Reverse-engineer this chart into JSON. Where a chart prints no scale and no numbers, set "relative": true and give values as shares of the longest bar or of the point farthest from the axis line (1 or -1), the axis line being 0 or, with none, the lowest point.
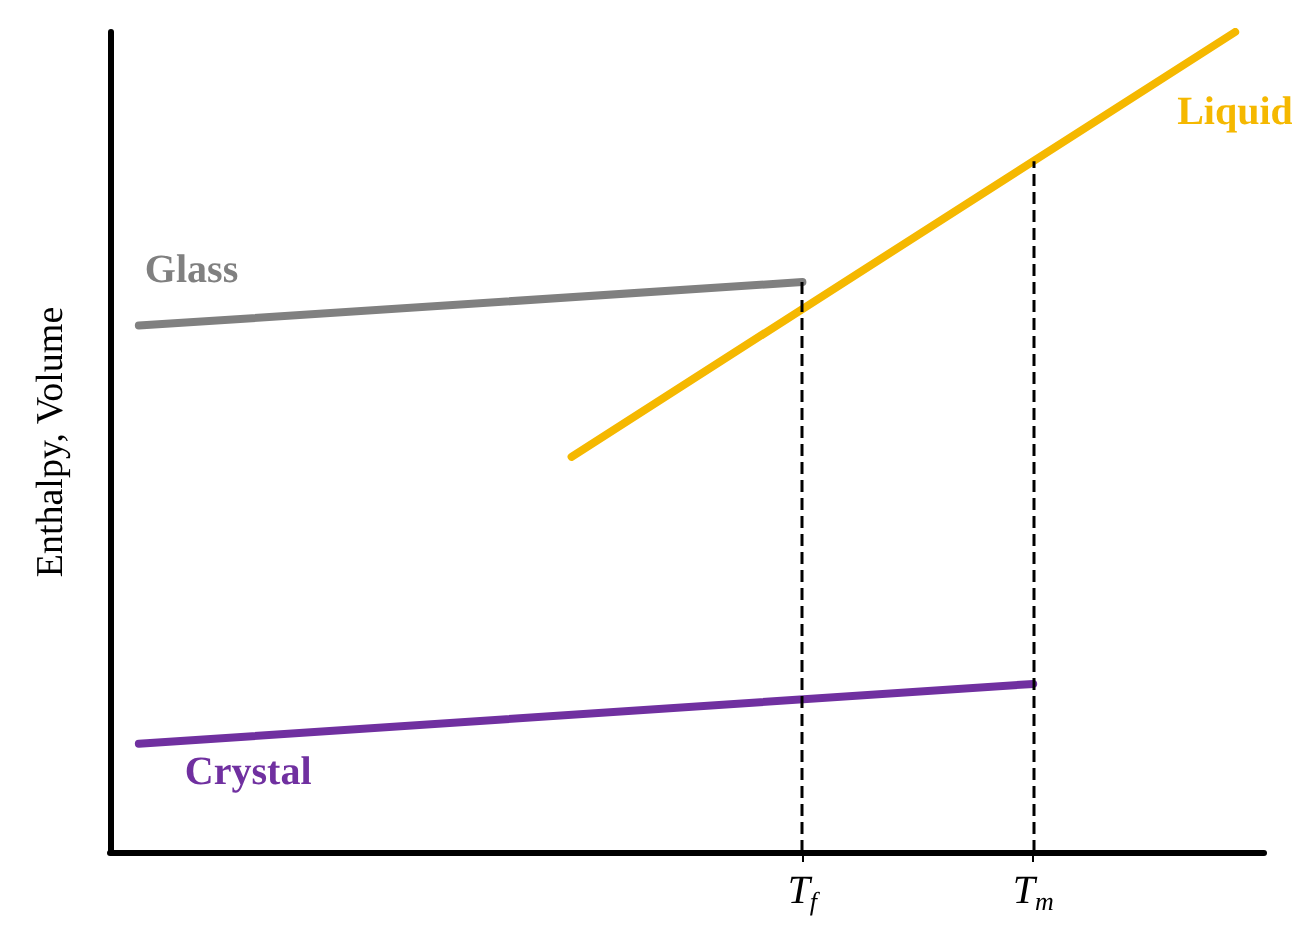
{
  "chart_data": {
    "type": "line",
    "relative": true,
    "ylabel": "Enthalpy, Volume",
    "grid": false,
    "legend": false,
    "marker": "none",
    "line_style": "solid",
    "categories": [
      null,
      null,
      null,
      null,
      null,
      null,
      null,
      null,
      null,
      null,
      null,
      null,
      null,
      null,
      null,
      null,
      null,
      null,
      null,
      null,
      null,
      null,
      null,
      null,
      "T$_{f}$",
      null,
      null,
      null,
      null,
      null,
      null,
      null,
      "T$_{m}$",
      null,
      null,
      null,
      null,
      null,
      null,
      null,
      null
    ],
    "series": [
      {
        "name": "Glass",
        "color": "#808080",
        "values": [
          null,
          0.642,
          null,
          null,
          null,
          null,
          null,
          null,
          null,
          null,
          null,
          null,
          null,
          null,
          null,
          null,
          null,
          null,
          null,
          null,
          null,
          null,
          null,
          null,
          0.695,
          null,
          null,
          null,
          null,
          null,
          null,
          null,
          null,
          null,
          null,
          null,
          null,
          null,
          null,
          null,
          null
        ]
      },
      {
        "name": "Liquid",
        "color": "#f5b800",
        "values": [
          null,
          null,
          null,
          null,
          null,
          null,
          null,
          null,
          null,
          null,
          null,
          null,
          null,
          null,
          null,
          null,
          0.482,
          null,
          null,
          null,
          null,
          null,
          null,
          null,
          null,
          null,
          null,
          null,
          null,
          null,
          null,
          null,
          null,
          null,
          null,
          null,
          null,
          null,
          null,
          1.0,
          null
        ]
      },
      {
        "name": "Crystal",
        "color": "#7030a0",
        "values": [
          null,
          0.132,
          null,
          null,
          null,
          null,
          null,
          null,
          null,
          null,
          null,
          null,
          null,
          null,
          null,
          null,
          null,
          null,
          null,
          null,
          null,
          null,
          null,
          null,
          null,
          null,
          null,
          null,
          null,
          null,
          null,
          null,
          0.205,
          null,
          null,
          null,
          null,
          null,
          null,
          null,
          null
        ]
      }
    ],
    "ref_lines": [
      {
        "axis": "x",
        "value": "T$_{f}$",
        "color": "#000000",
        "line_style": "dashed"
      },
      {
        "axis": "x",
        "value": "T$_{m}$",
        "color": "#000000",
        "line_style": "dashed"
      }
    ]
  }
}
